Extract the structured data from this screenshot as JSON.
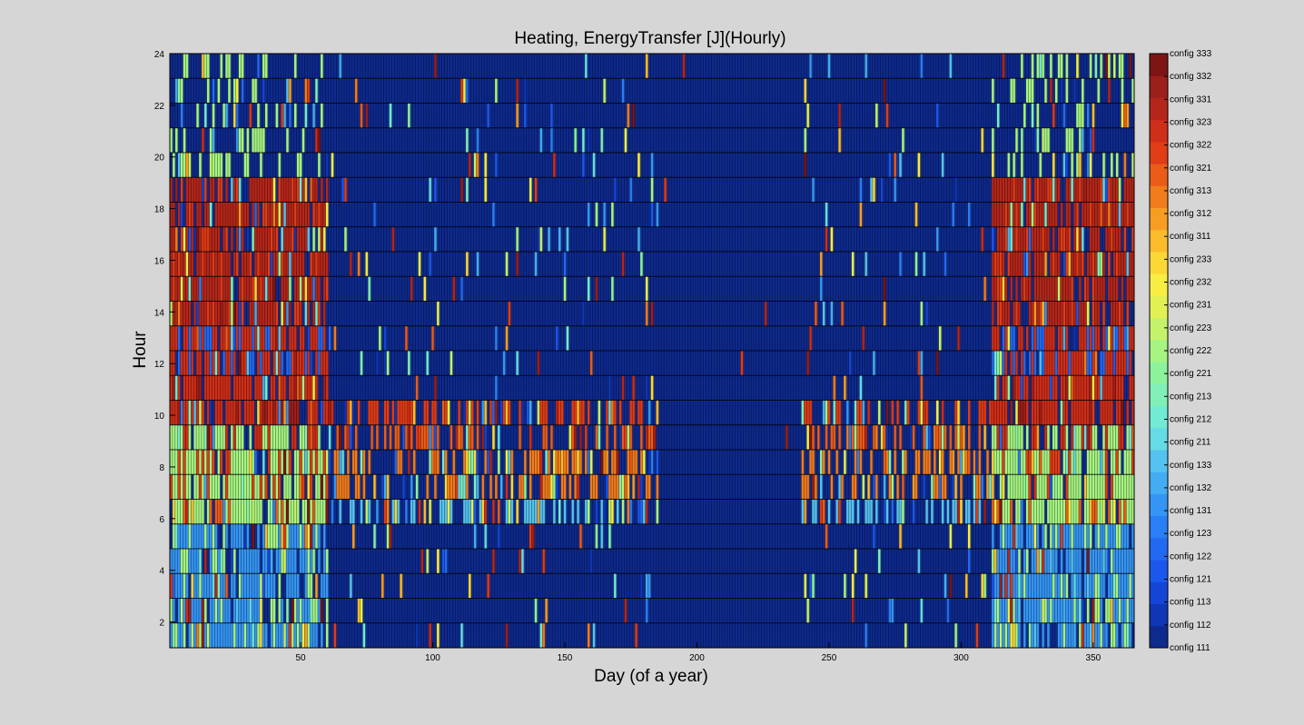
{
  "chart_data": {
    "type": "heatmap",
    "title": "Heating, EnergyTransfer [J](Hourly)",
    "xlabel": "Day (of a year)",
    "ylabel": "Hour",
    "xlim": [
      1,
      365
    ],
    "ylim": [
      1,
      24
    ],
    "x_ticks": [
      50,
      100,
      150,
      200,
      250,
      300,
      350
    ],
    "y_ticks": [
      2,
      4,
      6,
      8,
      10,
      12,
      14,
      16,
      18,
      20,
      22,
      24
    ],
    "grid": true,
    "colorbar": {
      "placement": "right",
      "labels": [
        "config 111",
        "config 112",
        "config 113",
        "config 121",
        "config 122",
        "config 123",
        "config 131",
        "config 132",
        "config 133",
        "config 211",
        "config 212",
        "config 213",
        "config 221",
        "config 222",
        "config 223",
        "config 231",
        "config 232",
        "config 233",
        "config 311",
        "config 312",
        "config 313",
        "config 321",
        "config 322",
        "config 323",
        "config 331",
        "config 332",
        "config 333"
      ],
      "colors": [
        "#0e2a8f",
        "#0f36b4",
        "#1445d6",
        "#1b57ec",
        "#2269f2",
        "#2a7ef6",
        "#3595f5",
        "#44acf2",
        "#55c2ef",
        "#65dbe6",
        "#72ead4",
        "#80f0b8",
        "#8cf39c",
        "#a6f482",
        "#c4f26a",
        "#e2f054",
        "#f8ed42",
        "#fbd836",
        "#fbbc2c",
        "#f79d22",
        "#f17c1c",
        "#ea5c18",
        "#e03c16",
        "#cf2e18",
        "#b5261a",
        "#9b1f1a",
        "#7c1514"
      ]
    },
    "background_level": 0,
    "hour_profile": [
      {
        "hours": [
          1,
          5
        ],
        "winter": 6,
        "alt": 13,
        "shoulder": 0
      },
      {
        "hours": [
          6,
          6
        ],
        "winter": 13,
        "alt": 21,
        "shoulder": 8
      },
      {
        "hours": [
          7,
          8
        ],
        "winter": 13,
        "alt": 22,
        "shoulder": 20
      },
      {
        "hours": [
          9,
          9
        ],
        "winter": 13,
        "alt": 23,
        "shoulder": 21
      },
      {
        "hours": [
          10,
          11
        ],
        "winter": 23,
        "alt": 25,
        "shoulder": 22
      },
      {
        "hours": [
          12,
          13
        ],
        "winter": 23,
        "alt": 4,
        "shoulder": 24
      },
      {
        "hours": [
          14,
          19
        ],
        "winter": 24,
        "alt": 22,
        "shoulder": 0
      },
      {
        "hours": [
          20,
          24
        ],
        "winter": 0,
        "alt": 13,
        "shoulder": 25
      }
    ],
    "seasons": {
      "winter": [
        [
          1,
          60
        ],
        [
          312,
          365
        ]
      ],
      "shoulder": [
        [
          61,
          185
        ],
        [
          240,
          311
        ]
      ]
    }
  }
}
